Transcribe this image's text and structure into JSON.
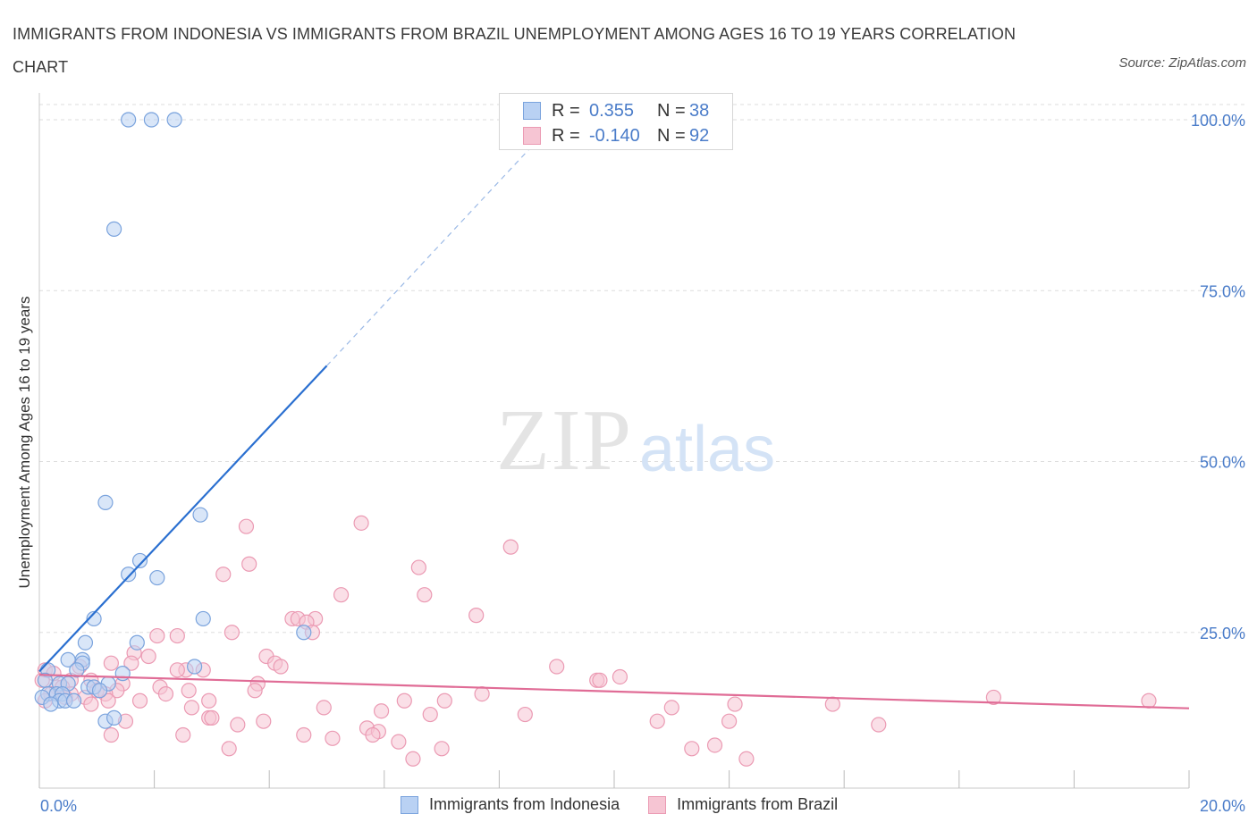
{
  "title": "IMMIGRANTS FROM INDONESIA VS IMMIGRANTS FROM BRAZIL UNEMPLOYMENT AMONG AGES 16 TO 19 YEARS CORRELATION CHART",
  "source": "Source: ZipAtlas.com",
  "watermark": {
    "zip": "ZIP",
    "atlas": "atlas"
  },
  "legend_top": [
    {
      "r_label": "R =",
      "r_value": "0.355",
      "n_label": "N =",
      "n_value": "38"
    },
    {
      "r_label": "R =",
      "r_value": "-0.140",
      "n_label": "N =",
      "n_value": "92"
    }
  ],
  "colors": {
    "indonesia_fill": "#b9d1f3",
    "indonesia_stroke": "#7aa3dd",
    "indonesia_line": "#2a6fd0",
    "brazil_fill": "#f6c5d3",
    "brazil_stroke": "#eb9ab3",
    "brazil_line": "#e06c96",
    "axis_text": "#4a7cc9",
    "grid": "#dddddd"
  },
  "chart_data": {
    "type": "scatter",
    "ylabel": "Unemployment Among Ages 16 to 19 years",
    "xlabel": "",
    "xlim": [
      0,
      20
    ],
    "ylim": [
      0,
      100
    ],
    "x_tick_labels": [
      {
        "value": 0,
        "label": "0.0%"
      },
      {
        "value": 20,
        "label": "20.0%"
      }
    ],
    "x_tick_marks": [
      0,
      2,
      4,
      6,
      8,
      10,
      12,
      14,
      16,
      18,
      20
    ],
    "y_ticks": [
      {
        "value": 25,
        "label": "25.0%"
      },
      {
        "value": 50,
        "label": "50.0%"
      },
      {
        "value": 75,
        "label": "75.0%"
      },
      {
        "value": 100,
        "label": "100.0%"
      }
    ],
    "grid": true,
    "legend_position": "bottom",
    "series": [
      {
        "name": "Immigrants from Indonesia",
        "trend": {
          "x0": 0.0,
          "y0": 19.3,
          "x1": 5.0,
          "y1": 64.0,
          "dash_to_x": 9.0,
          "dash_to_y": 100.0
        },
        "points": [
          [
            1.55,
            100
          ],
          [
            1.95,
            100
          ],
          [
            2.35,
            100
          ],
          [
            1.3,
            84
          ],
          [
            1.15,
            44
          ],
          [
            2.8,
            42.2
          ],
          [
            1.75,
            35.5
          ],
          [
            1.55,
            33.5
          ],
          [
            2.05,
            33
          ],
          [
            0.95,
            27
          ],
          [
            2.85,
            27
          ],
          [
            4.6,
            25
          ],
          [
            0.8,
            23.5
          ],
          [
            1.7,
            23.5
          ],
          [
            0.5,
            21
          ],
          [
            0.75,
            21
          ],
          [
            0.75,
            20.5
          ],
          [
            2.7,
            20
          ],
          [
            0.15,
            19.5
          ],
          [
            0.65,
            19.5
          ],
          [
            1.45,
            19
          ],
          [
            0.1,
            18
          ],
          [
            0.35,
            17.5
          ],
          [
            0.5,
            17.5
          ],
          [
            1.2,
            17.5
          ],
          [
            0.85,
            17
          ],
          [
            0.95,
            17
          ],
          [
            0.15,
            16
          ],
          [
            0.3,
            16
          ],
          [
            0.4,
            16
          ],
          [
            1.05,
            16.5
          ],
          [
            0.05,
            15.5
          ],
          [
            0.35,
            15
          ],
          [
            0.45,
            15
          ],
          [
            0.6,
            15
          ],
          [
            0.2,
            14.5
          ],
          [
            1.15,
            12
          ],
          [
            1.3,
            12.5
          ]
        ]
      },
      {
        "name": "Immigrants from Brazil",
        "trend": {
          "x0": 0.0,
          "y0": 18.8,
          "x1": 20.0,
          "y1": 13.9
        },
        "points": [
          [
            5.6,
            41
          ],
          [
            3.6,
            40.5
          ],
          [
            8.2,
            37.5
          ],
          [
            3.65,
            35
          ],
          [
            6.6,
            34.5
          ],
          [
            3.2,
            33.5
          ],
          [
            5.25,
            30.5
          ],
          [
            6.7,
            30.5
          ],
          [
            4.4,
            27
          ],
          [
            4.5,
            27
          ],
          [
            4.8,
            27
          ],
          [
            4.65,
            26.5
          ],
          [
            7.6,
            27.5
          ],
          [
            3.35,
            25
          ],
          [
            4.75,
            25
          ],
          [
            2.05,
            24.5
          ],
          [
            2.4,
            24.5
          ],
          [
            1.65,
            22
          ],
          [
            1.9,
            21.5
          ],
          [
            3.95,
            21.5
          ],
          [
            4.1,
            20.5
          ],
          [
            1.25,
            20.5
          ],
          [
            1.6,
            20.5
          ],
          [
            0.7,
            20
          ],
          [
            4.2,
            20
          ],
          [
            2.55,
            19.5
          ],
          [
            2.4,
            19.5
          ],
          [
            2.85,
            19.5
          ],
          [
            9.0,
            20
          ],
          [
            0.1,
            19.5
          ],
          [
            0.25,
            19
          ],
          [
            0.55,
            18
          ],
          [
            0.9,
            18
          ],
          [
            1.45,
            17.5
          ],
          [
            3.8,
            17.5
          ],
          [
            10.1,
            18.5
          ],
          [
            9.7,
            18
          ],
          [
            9.75,
            18
          ],
          [
            0.05,
            18
          ],
          [
            0.3,
            17
          ],
          [
            0.4,
            17
          ],
          [
            1.0,
            16.5
          ],
          [
            1.35,
            16.5
          ],
          [
            2.1,
            17
          ],
          [
            2.6,
            16.5
          ],
          [
            0.2,
            16
          ],
          [
            0.55,
            16
          ],
          [
            1.15,
            16
          ],
          [
            2.2,
            16
          ],
          [
            3.75,
            16.5
          ],
          [
            0.45,
            15.5
          ],
          [
            0.8,
            15.5
          ],
          [
            7.7,
            16
          ],
          [
            1.2,
            15
          ],
          [
            1.75,
            15
          ],
          [
            2.95,
            15
          ],
          [
            6.35,
            15
          ],
          [
            7.05,
            15
          ],
          [
            16.6,
            15.5
          ],
          [
            19.3,
            15
          ],
          [
            0.1,
            15
          ],
          [
            0.9,
            14.5
          ],
          [
            2.65,
            14
          ],
          [
            4.95,
            14
          ],
          [
            5.95,
            13.5
          ],
          [
            11.0,
            14
          ],
          [
            12.1,
            14.5
          ],
          [
            13.8,
            14.5
          ],
          [
            6.8,
            13
          ],
          [
            8.45,
            13
          ],
          [
            2.95,
            12.5
          ],
          [
            3.0,
            12.5
          ],
          [
            1.5,
            12
          ],
          [
            3.9,
            12
          ],
          [
            3.45,
            11.5
          ],
          [
            10.75,
            12
          ],
          [
            14.6,
            11.5
          ],
          [
            5.7,
            11
          ],
          [
            5.9,
            10.5
          ],
          [
            5.8,
            10
          ],
          [
            4.6,
            10
          ],
          [
            1.25,
            10
          ],
          [
            2.5,
            10
          ],
          [
            5.1,
            9.5
          ],
          [
            6.25,
            9
          ],
          [
            11.75,
            8.5
          ],
          [
            11.35,
            8
          ],
          [
            7.0,
            8
          ],
          [
            3.3,
            8
          ],
          [
            6.5,
            6.5
          ],
          [
            12.3,
            6.5
          ],
          [
            12.0,
            12
          ]
        ]
      }
    ]
  }
}
